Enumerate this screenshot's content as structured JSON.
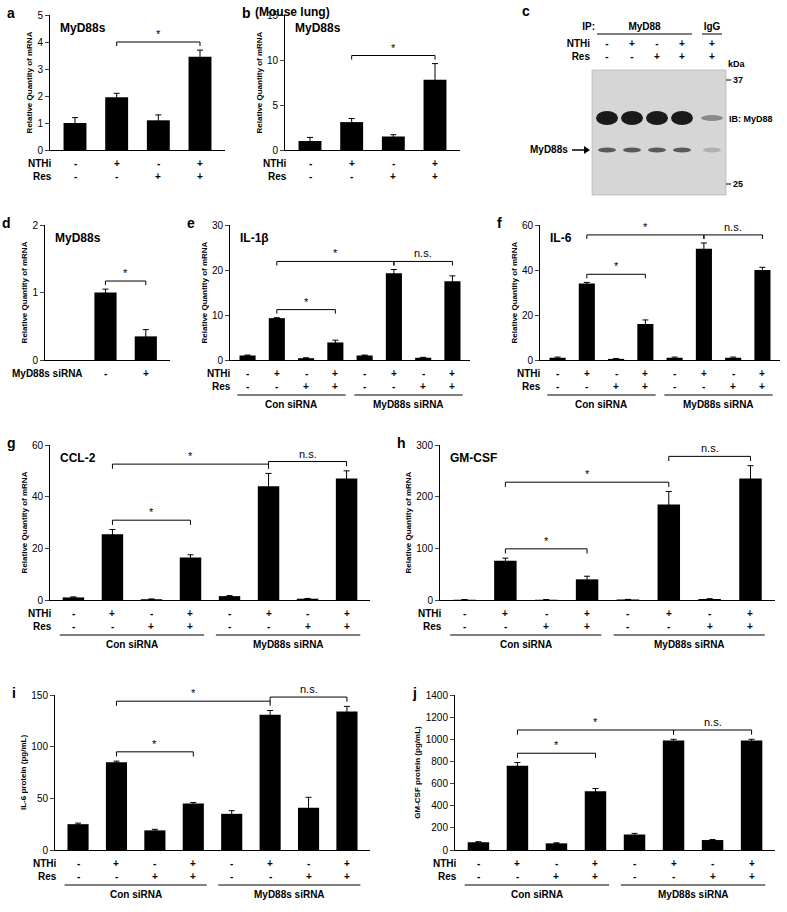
{
  "chart_data": [
    {
      "type": "bar",
      "panel": "a",
      "title": "MyD88s",
      "ylabel": "Relative Quantity of mRNA",
      "color": "#000000",
      "categories": [
        null,
        null,
        null,
        null
      ],
      "values": [
        1,
        1.95,
        1.1,
        3.45
      ],
      "errors": [
        0.2,
        0.15,
        0.2,
        0.25
      ],
      "factors": [
        {
          "name": "NTHi",
          "levels": [
            "-",
            "+",
            "-",
            "+"
          ]
        },
        {
          "name": "Res",
          "levels": [
            "-",
            "-",
            "+",
            "+"
          ]
        }
      ],
      "brackets": [
        {
          "from": 1,
          "to": 3,
          "label": "*"
        }
      ],
      "ylim": [
        0,
        5
      ],
      "yticks": [
        0,
        1,
        2,
        3,
        4,
        5
      ],
      "grid": false
    },
    {
      "type": "bar",
      "panel": "b",
      "subtitle": "(Mouse lung)",
      "title": "MyD88s",
      "ylabel": "Relative Quantity of mRNA",
      "color": "#000000",
      "categories": [
        null,
        null,
        null,
        null
      ],
      "values": [
        1,
        3.1,
        1.5,
        7.8
      ],
      "errors": [
        0.4,
        0.4,
        0.2,
        1.8
      ],
      "factors": [
        {
          "name": "NTHi",
          "levels": [
            "-",
            "+",
            "-",
            "+"
          ]
        },
        {
          "name": "Res",
          "levels": [
            "-",
            "-",
            "+",
            "+"
          ]
        }
      ],
      "brackets": [
        {
          "from": 1,
          "to": 3,
          "label": "*"
        }
      ],
      "ylim": [
        0,
        15
      ],
      "yticks": [
        0,
        5,
        10,
        15
      ],
      "grid": false
    },
    {
      "type": "bar",
      "panel": "d",
      "title": "MyD88s",
      "ylabel": "Relative Quantity of mRNA",
      "color": "#000000",
      "categories": [
        null,
        null
      ],
      "values": [
        1,
        0.35
      ],
      "errors": [
        0.05,
        0.1
      ],
      "factors": [
        {
          "name": "MyD88s siRNA",
          "levels": [
            "-",
            "+"
          ]
        }
      ],
      "brackets": [
        {
          "from": 0,
          "to": 1,
          "label": "*"
        }
      ],
      "ylim": [
        0,
        2
      ],
      "yticks": [
        0,
        1,
        2
      ],
      "grid": false
    },
    {
      "type": "bar",
      "panel": "e",
      "title": "IL-1β",
      "ylabel": "Relative Quantity of mRNA",
      "color": "#000000",
      "categories": [
        null,
        null,
        null,
        null,
        null,
        null,
        null,
        null
      ],
      "values": [
        1,
        9.3,
        0.4,
        3.9,
        1,
        19.3,
        0.5,
        17.5
      ],
      "errors": [
        0.1,
        0.1,
        0.1,
        0.5,
        0.1,
        0.8,
        0.1,
        1.2
      ],
      "factors": [
        {
          "name": "NTHi",
          "levels": [
            "-",
            "+",
            "-",
            "+",
            "-",
            "+",
            "-",
            "+"
          ]
        },
        {
          "name": "Res",
          "levels": [
            "-",
            "-",
            "+",
            "+",
            "-",
            "-",
            "+",
            "+"
          ]
        }
      ],
      "groups": [
        "Con siRNA",
        "Con siRNA",
        "Con siRNA",
        "Con siRNA",
        "MyD88s siRNA",
        "MyD88s siRNA",
        "MyD88s siRNA",
        "MyD88s siRNA"
      ],
      "brackets": [
        {
          "from": 1,
          "to": 3,
          "label": "*"
        },
        {
          "from": 1,
          "to": 5,
          "label": "*"
        },
        {
          "from": 5,
          "to": 7,
          "label": "n.s."
        }
      ],
      "ylim": [
        0,
        30
      ],
      "yticks": [
        0,
        10,
        20,
        30
      ],
      "grid": false
    },
    {
      "type": "bar",
      "panel": "f",
      "title": "IL-6",
      "ylabel": "Relative Quantity of mRNA",
      "color": "#000000",
      "categories": [
        null,
        null,
        null,
        null,
        null,
        null,
        null,
        null
      ],
      "values": [
        1,
        34,
        0.5,
        16,
        1,
        49.5,
        1,
        40
      ],
      "errors": [
        0.3,
        0.5,
        0.2,
        1.8,
        0.3,
        2.5,
        0.3,
        1.2
      ],
      "factors": [
        {
          "name": "NTHi",
          "levels": [
            "-",
            "+",
            "-",
            "+",
            "-",
            "+",
            "-",
            "+"
          ]
        },
        {
          "name": "Res",
          "levels": [
            "-",
            "-",
            "+",
            "+",
            "-",
            "-",
            "+",
            "+"
          ]
        }
      ],
      "groups": [
        "Con siRNA",
        "Con siRNA",
        "Con siRNA",
        "Con siRNA",
        "MyD88s siRNA",
        "MyD88s siRNA",
        "MyD88s siRNA",
        "MyD88s siRNA"
      ],
      "brackets": [
        {
          "from": 1,
          "to": 3,
          "label": "*"
        },
        {
          "from": 1,
          "to": 5,
          "label": "*"
        },
        {
          "from": 5,
          "to": 7,
          "label": "n.s."
        }
      ],
      "ylim": [
        0,
        60
      ],
      "yticks": [
        0,
        20,
        40,
        60
      ],
      "grid": false
    },
    {
      "type": "bar",
      "panel": "g",
      "title": "CCL-2",
      "ylabel": "Relative Quantity of mRNA",
      "color": "#000000",
      "categories": [
        null,
        null,
        null,
        null,
        null,
        null,
        null,
        null
      ],
      "values": [
        1,
        25.5,
        0.3,
        16.5,
        1.5,
        44,
        0.5,
        47
      ],
      "errors": [
        0.2,
        1.8,
        0.1,
        1,
        0.2,
        5,
        0.1,
        3
      ],
      "factors": [
        {
          "name": "NTHi",
          "levels": [
            "-",
            "+",
            "-",
            "+",
            "-",
            "+",
            "-",
            "+"
          ]
        },
        {
          "name": "Res",
          "levels": [
            "-",
            "-",
            "+",
            "+",
            "-",
            "-",
            "+",
            "+"
          ]
        }
      ],
      "groups": [
        "Con siRNA",
        "Con siRNA",
        "Con siRNA",
        "Con siRNA",
        "MyD88s siRNA",
        "MyD88s siRNA",
        "MyD88s siRNA",
        "MyD88s siRNA"
      ],
      "brackets": [
        {
          "from": 1,
          "to": 3,
          "label": "*"
        },
        {
          "from": 1,
          "to": 5,
          "label": "*"
        },
        {
          "from": 5,
          "to": 7,
          "label": "n.s."
        }
      ],
      "ylim": [
        0,
        60
      ],
      "yticks": [
        0,
        20,
        40,
        60
      ],
      "grid": false
    },
    {
      "type": "bar",
      "panel": "h",
      "title": "GM-CSF",
      "ylabel": "Relative Quantity of mRNA",
      "color": "#000000",
      "categories": [
        null,
        null,
        null,
        null,
        null,
        null,
        null,
        null
      ],
      "values": [
        0.5,
        76,
        0.5,
        40,
        1,
        185,
        2,
        235
      ],
      "errors": [
        0.2,
        5,
        0.2,
        6,
        0.2,
        25,
        0.3,
        25
      ],
      "factors": [
        {
          "name": "NTHi",
          "levels": [
            "-",
            "+",
            "-",
            "+",
            "-",
            "+",
            "-",
            "+"
          ]
        },
        {
          "name": "Res",
          "levels": [
            "-",
            "-",
            "+",
            "+",
            "-",
            "-",
            "+",
            "+"
          ]
        }
      ],
      "groups": [
        "Con siRNA",
        "Con siRNA",
        "Con siRNA",
        "Con siRNA",
        "MyD88s siRNA",
        "MyD88s siRNA",
        "MyD88s siRNA",
        "MyD88s siRNA"
      ],
      "brackets": [
        {
          "from": 1,
          "to": 3,
          "label": "*"
        },
        {
          "from": 1,
          "to": 5,
          "label": "*"
        },
        {
          "from": 5,
          "to": 7,
          "label": "n.s."
        }
      ],
      "ylim": [
        0,
        300
      ],
      "yticks": [
        0,
        100,
        200,
        300
      ],
      "grid": false
    },
    {
      "type": "bar",
      "panel": "i",
      "ylabel": "IL-6 protein (pg/mL)",
      "color": "#000000",
      "categories": [
        null,
        null,
        null,
        null,
        null,
        null,
        null,
        null
      ],
      "values": [
        25,
        85,
        19,
        45,
        35,
        131,
        41,
        134
      ],
      "errors": [
        1,
        1,
        1,
        1,
        3,
        4,
        10,
        5
      ],
      "factors": [
        {
          "name": "NTHi",
          "levels": [
            "-",
            "+",
            "-",
            "+",
            "-",
            "+",
            "-",
            "+"
          ]
        },
        {
          "name": "Res",
          "levels": [
            "-",
            "-",
            "+",
            "+",
            "-",
            "-",
            "+",
            "+"
          ]
        }
      ],
      "groups": [
        "Con siRNA",
        "Con siRNA",
        "Con siRNA",
        "Con siRNA",
        "MyD88s siRNA",
        "MyD88s siRNA",
        "MyD88s siRNA",
        "MyD88s siRNA"
      ],
      "brackets": [
        {
          "from": 1,
          "to": 3,
          "label": "*"
        },
        {
          "from": 1,
          "to": 5,
          "label": "*"
        },
        {
          "from": 5,
          "to": 7,
          "label": "n.s."
        }
      ],
      "ylim": [
        0,
        150
      ],
      "yticks": [
        0,
        50,
        100,
        150
      ],
      "grid": false
    },
    {
      "type": "bar",
      "panel": "j",
      "ylabel": "GM-CSF protein (pg/mL)",
      "color": "#000000",
      "categories": [
        null,
        null,
        null,
        null,
        null,
        null,
        null,
        null
      ],
      "values": [
        70,
        760,
        60,
        530,
        140,
        990,
        90,
        990
      ],
      "errors": [
        5,
        30,
        5,
        25,
        10,
        10,
        5,
        10
      ],
      "factors": [
        {
          "name": "NTHi",
          "levels": [
            "-",
            "+",
            "-",
            "+",
            "-",
            "+",
            "-",
            "+"
          ]
        },
        {
          "name": "Res",
          "levels": [
            "-",
            "-",
            "+",
            "+",
            "-",
            "-",
            "+",
            "+"
          ]
        }
      ],
      "groups": [
        "Con siRNA",
        "Con siRNA",
        "Con siRNA",
        "Con siRNA",
        "MyD88s siRNA",
        "MyD88s siRNA",
        "MyD88s siRNA",
        "MyD88s siRNA"
      ],
      "brackets": [
        {
          "from": 1,
          "to": 3,
          "label": "*"
        },
        {
          "from": 1,
          "to": 5,
          "label": "*"
        },
        {
          "from": 5,
          "to": 7,
          "label": "n.s."
        }
      ],
      "ylim": [
        0,
        1400
      ],
      "yticks": [
        0,
        200,
        400,
        600,
        800,
        1000,
        1200,
        1400
      ],
      "grid": false
    }
  ],
  "blot": {
    "panel": "c",
    "ip_label": "IP:",
    "rows": [
      "NTHi",
      "Res"
    ],
    "lanes": [
      {
        "ip": "MyD88",
        "levels": [
          "-",
          "-"
        ]
      },
      {
        "ip": "MyD88",
        "levels": [
          "+",
          "-"
        ]
      },
      {
        "ip": "MyD88",
        "levels": [
          "-",
          "+"
        ]
      },
      {
        "ip": "MyD88",
        "levels": [
          "+",
          "+"
        ]
      },
      {
        "ip": "IgG",
        "levels": [
          "+",
          "+"
        ]
      }
    ],
    "unit": "kDa",
    "markers": [
      37,
      25
    ],
    "antibody": "IB: MyD88",
    "band": "MyD88s"
  }
}
